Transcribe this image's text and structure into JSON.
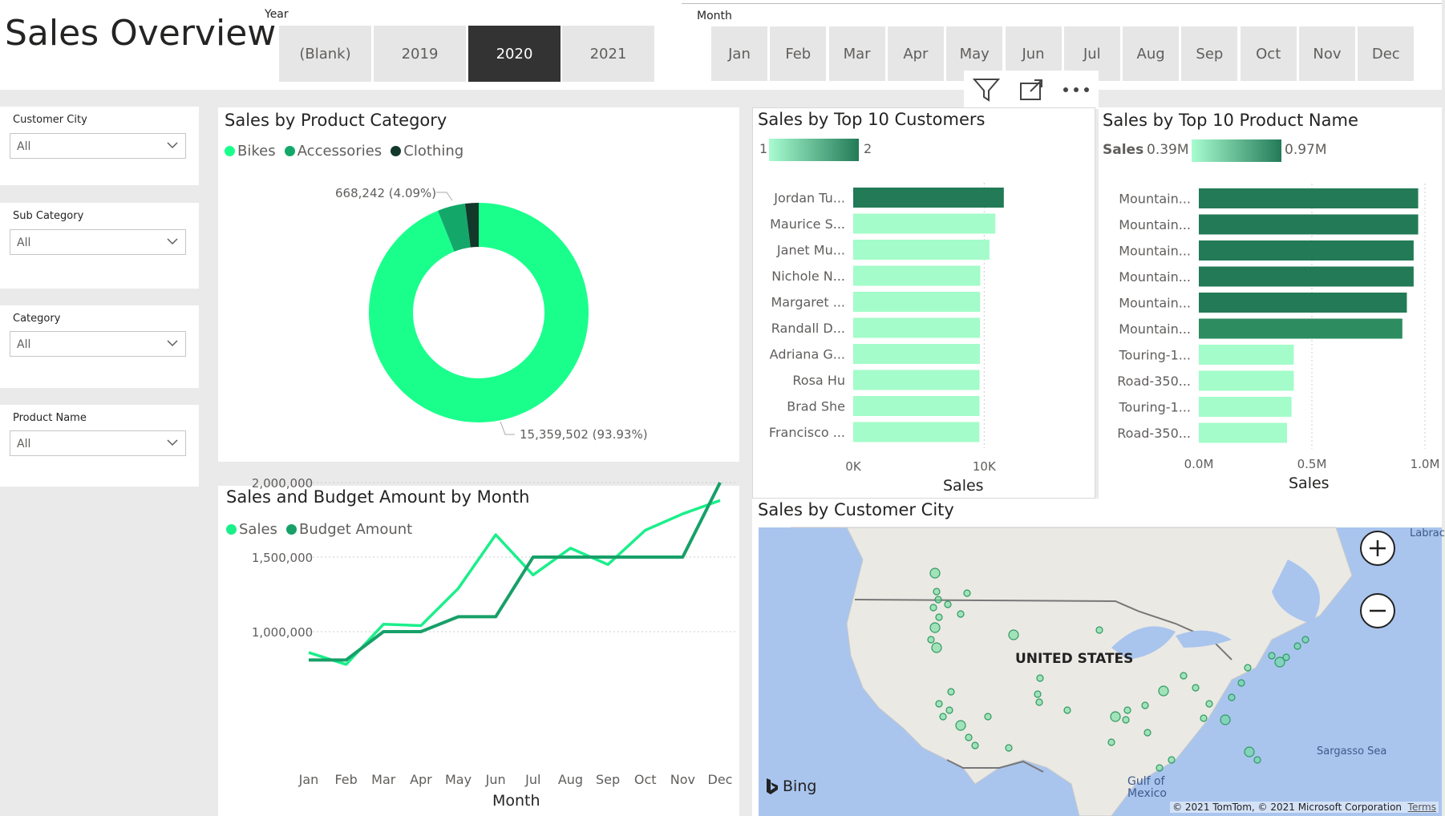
{
  "page": {
    "title": "Sales Overview"
  },
  "year_slicer": {
    "label": "Year",
    "options": [
      "(Blank)",
      "2019",
      "2020",
      "2021"
    ],
    "selected": "2020"
  },
  "month_slicer": {
    "label": "Month",
    "options": [
      "Jan",
      "Feb",
      "Mar",
      "Apr",
      "May",
      "Jun",
      "Jul",
      "Aug",
      "Sep",
      "Oct",
      "Nov",
      "Dec"
    ]
  },
  "visual_header": {
    "icons": [
      "filter-icon",
      "focus-mode-icon",
      "more-options-icon"
    ]
  },
  "filters": [
    {
      "label": "Customer City",
      "value": "All"
    },
    {
      "label": "Sub Category",
      "value": "All"
    },
    {
      "label": "Category",
      "value": "All"
    },
    {
      "label": "Product Name",
      "value": "All"
    }
  ],
  "category_chart": {
    "title": "Sales by Product Category",
    "legend": [
      {
        "name": "Bikes",
        "color": "#1aff8c"
      },
      {
        "name": "Accessories",
        "color": "#13a86a"
      },
      {
        "name": "Clothing",
        "color": "#12382a"
      }
    ],
    "label_small": "668,242 (4.09%)",
    "label_large": "15,359,502 (93.93%)"
  },
  "customers_chart": {
    "title": "Sales by Top 10 Customers",
    "gradient_min": "1",
    "gradient_max": "2",
    "x_ticks": [
      "0K",
      "10K"
    ],
    "x_title": "Sales"
  },
  "products_chart": {
    "title": "Sales by Top 10 Product Name",
    "legend_title": "Sales",
    "gradient_min": "0.39M",
    "gradient_max": "0.97M",
    "x_ticks": [
      "0.0M",
      "0.5M",
      "1.0M"
    ],
    "x_title": "Sales"
  },
  "line_chart": {
    "title": "Sales and Budget Amount by Month",
    "legend": [
      {
        "name": "Sales",
        "color": "#1aef8a"
      },
      {
        "name": "Budget Amount",
        "color": "#17a068"
      }
    ],
    "y_ticks": [
      "2,000,000",
      "1,500,000",
      "1,000,000"
    ],
    "x_title": "Month"
  },
  "map": {
    "title": "Sales by Customer City",
    "country_label": "UNITED STATES",
    "labels": {
      "gulf": "Gulf of\nMexico",
      "sea": "Sargasso Sea",
      "labrador": "Labrac"
    },
    "brand": "Bing",
    "copyright": "© 2021 TomTom, © 2021 Microsoft Corporation",
    "terms": "Terms"
  },
  "chart_data": [
    {
      "type": "pie",
      "title": "Sales by Product Category",
      "categories": [
        "Bikes",
        "Accessories",
        "Clothing"
      ],
      "values": [
        15359502,
        668242,
        323800
      ],
      "labels": [
        "15,359,502 (93.93%)",
        "668,242 (4.09%)",
        ""
      ]
    },
    {
      "type": "bar",
      "title": "Sales by Top 10 Customers",
      "categories": [
        "Jordan Tu...",
        "Maurice S...",
        "Janet Mu...",
        "Nichole N...",
        "Margaret ...",
        "Randall D...",
        "Adriana G...",
        "Rosa Hu",
        "Brad She",
        "Francisco ..."
      ],
      "values": [
        11500,
        10850,
        10400,
        9700,
        9690,
        9680,
        9670,
        9650,
        9640,
        9630
      ],
      "color_values": [
        2,
        1,
        1,
        1,
        1,
        1,
        1,
        1,
        1,
        1
      ],
      "xlabel": "Sales",
      "xlim": [
        0,
        12000
      ]
    },
    {
      "type": "bar",
      "title": "Sales by Top 10 Product Name",
      "categories": [
        "Mountain...",
        "Mountain...",
        "Mountain...",
        "Mountain...",
        "Mountain...",
        "Mountain...",
        "Touring-1...",
        "Road-350...",
        "Touring-1...",
        "Road-350..."
      ],
      "values": [
        0.97,
        0.97,
        0.95,
        0.95,
        0.92,
        0.9,
        0.42,
        0.42,
        0.41,
        0.39
      ],
      "xlabel": "Sales",
      "xlim": [
        0,
        1.0
      ]
    },
    {
      "type": "line",
      "title": "Sales and Budget Amount by Month",
      "x": [
        "Jan",
        "Feb",
        "Mar",
        "Apr",
        "May",
        "Jun",
        "Jul",
        "Aug",
        "Sep",
        "Oct",
        "Nov",
        "Dec"
      ],
      "series": [
        {
          "name": "Sales",
          "values": [
            860000,
            780000,
            1050000,
            1040000,
            1290000,
            1650000,
            1380000,
            1560000,
            1450000,
            1680000,
            1790000,
            1880000
          ]
        },
        {
          "name": "Budget Amount",
          "values": [
            810000,
            810000,
            1000000,
            1000000,
            1100000,
            1100000,
            1500000,
            1500000,
            1500000,
            1500000,
            1500000,
            2000000
          ]
        }
      ],
      "xlabel": "Month",
      "ylim": [
        600000,
        2050000
      ],
      "grid": true
    }
  ]
}
